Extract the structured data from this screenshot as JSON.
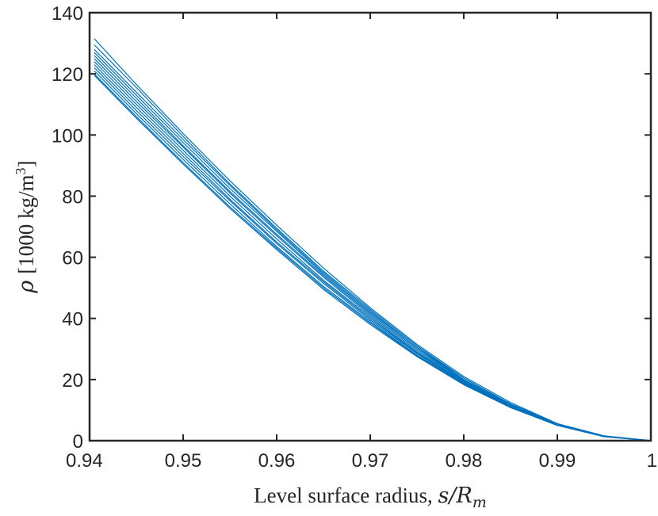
{
  "chart_data": {
    "type": "line",
    "title": "",
    "xlabel": "Level surface radius, s/R_m",
    "xlabel_parts": {
      "text": "Level surface radius, ",
      "math": "s/R",
      "sub": "m"
    },
    "ylabel": "ρ [1000 kg/m³]",
    "ylabel_parts": {
      "greek": "ρ",
      "text": "[1000 kg/m",
      "sup": "3",
      "close": "]"
    },
    "xlim": [
      0.94,
      1.0
    ],
    "ylim": [
      0,
      140
    ],
    "xticks": [
      0.94,
      0.95,
      0.96,
      0.97,
      0.98,
      0.99,
      1.0
    ],
    "xtick_labels": [
      "0.94",
      "0.95",
      "0.96",
      "0.97",
      "0.98",
      "0.99",
      "1"
    ],
    "yticks": [
      0,
      20,
      40,
      60,
      80,
      100,
      120,
      140
    ],
    "ytick_labels": [
      "0",
      "20",
      "40",
      "60",
      "80",
      "100",
      "120",
      "140"
    ],
    "grid": false,
    "series_color": "#0072bd",
    "x": [
      0.9405,
      0.945,
      0.95,
      0.955,
      0.96,
      0.965,
      0.97,
      0.975,
      0.98,
      0.985,
      0.99,
      0.995,
      1.0
    ],
    "series": [
      {
        "values": [
          131.5,
          116.5,
          100.5,
          85.0,
          70.5,
          56.5,
          43.5,
          31.5,
          21.0,
          12.5,
          5.6,
          1.6,
          0
        ]
      },
      {
        "values": [
          129.5,
          115.5,
          99.5,
          84.0,
          69.5,
          55.5,
          43.0,
          31.0,
          20.5,
          12.0,
          5.5,
          1.5,
          0
        ]
      },
      {
        "values": [
          128.0,
          114.0,
          98.5,
          83.5,
          69.0,
          55.0,
          42.5,
          30.5,
          20.5,
          12.0,
          5.5,
          1.5,
          0
        ]
      },
      {
        "values": [
          127.0,
          113.0,
          97.5,
          82.5,
          68.5,
          54.5,
          42.0,
          30.5,
          20.0,
          11.8,
          5.4,
          1.5,
          0
        ]
      },
      {
        "values": [
          126.0,
          112.0,
          96.5,
          81.5,
          67.5,
          54.0,
          41.5,
          30.0,
          20.0,
          11.7,
          5.4,
          1.5,
          0
        ]
      },
      {
        "values": [
          125.0,
          111.0,
          96.0,
          81.0,
          67.0,
          53.5,
          41.0,
          29.5,
          19.8,
          11.6,
          5.3,
          1.4,
          0
        ]
      },
      {
        "values": [
          124.0,
          110.0,
          95.0,
          80.0,
          66.0,
          52.5,
          40.5,
          29.0,
          19.5,
          11.5,
          5.3,
          1.4,
          0
        ]
      },
      {
        "values": [
          123.0,
          109.0,
          94.0,
          79.0,
          65.0,
          52.0,
          40.0,
          28.8,
          19.2,
          11.3,
          5.2,
          1.4,
          0
        ]
      },
      {
        "values": [
          122.0,
          108.0,
          93.0,
          78.5,
          64.5,
          51.5,
          39.5,
          28.5,
          19.0,
          11.2,
          5.2,
          1.4,
          0
        ]
      },
      {
        "values": [
          121.0,
          107.0,
          92.0,
          77.5,
          63.5,
          50.5,
          39.0,
          28.0,
          18.8,
          11.0,
          5.1,
          1.4,
          0
        ]
      },
      {
        "values": [
          120.0,
          106.0,
          91.0,
          76.5,
          63.0,
          50.0,
          38.5,
          27.8,
          18.5,
          10.9,
          5.0,
          1.4,
          0
        ]
      },
      {
        "values": [
          119.5,
          105.5,
          90.5,
          76.0,
          62.5,
          49.5,
          38.0,
          27.5,
          18.3,
          10.8,
          5.0,
          1.3,
          0
        ]
      }
    ]
  }
}
